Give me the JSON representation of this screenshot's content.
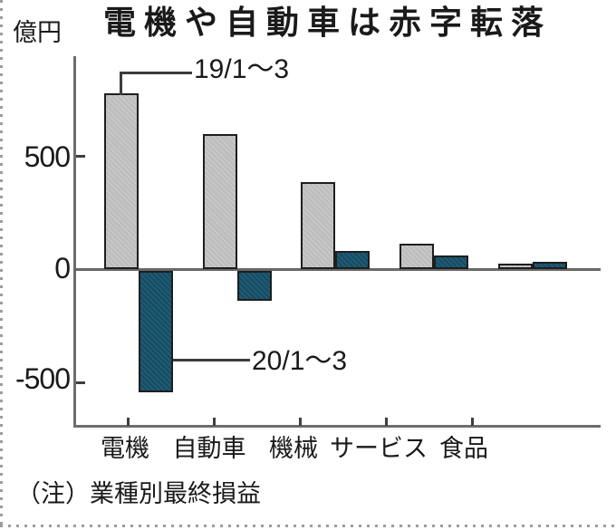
{
  "title": "電機や自動車は赤字転落",
  "unit_label": "億円",
  "note": "（注）業種別最終損益",
  "y_axis": {
    "ticks": [
      "500",
      "0",
      "-500"
    ]
  },
  "colors": {
    "bar_2019": "#bdbdbd",
    "bar_2020": "#1d5b75",
    "axis": "#6d6d6d",
    "text": "#1a1a1a"
  },
  "chart_data": {
    "type": "bar",
    "title": "電機や自動車は赤字転落",
    "unit": "億円",
    "categories": [
      "電機",
      "自動車",
      "機械",
      "サービス",
      "食品"
    ],
    "series": [
      {
        "name": "19/1～3",
        "color": "#bdbdbd",
        "values": [
          770,
          590,
          380,
          110,
          25
        ]
      },
      {
        "name": "20/1～3",
        "color": "#1d5b75",
        "values": [
          -530,
          -130,
          80,
          60,
          30
        ]
      }
    ],
    "ylabel": "億円",
    "ylim": [
      -700,
      850
    ],
    "yticks": [
      500,
      0,
      -500
    ],
    "grid": false,
    "legend_position": "annotation-callouts",
    "note": "（注）業種別最終損益"
  }
}
